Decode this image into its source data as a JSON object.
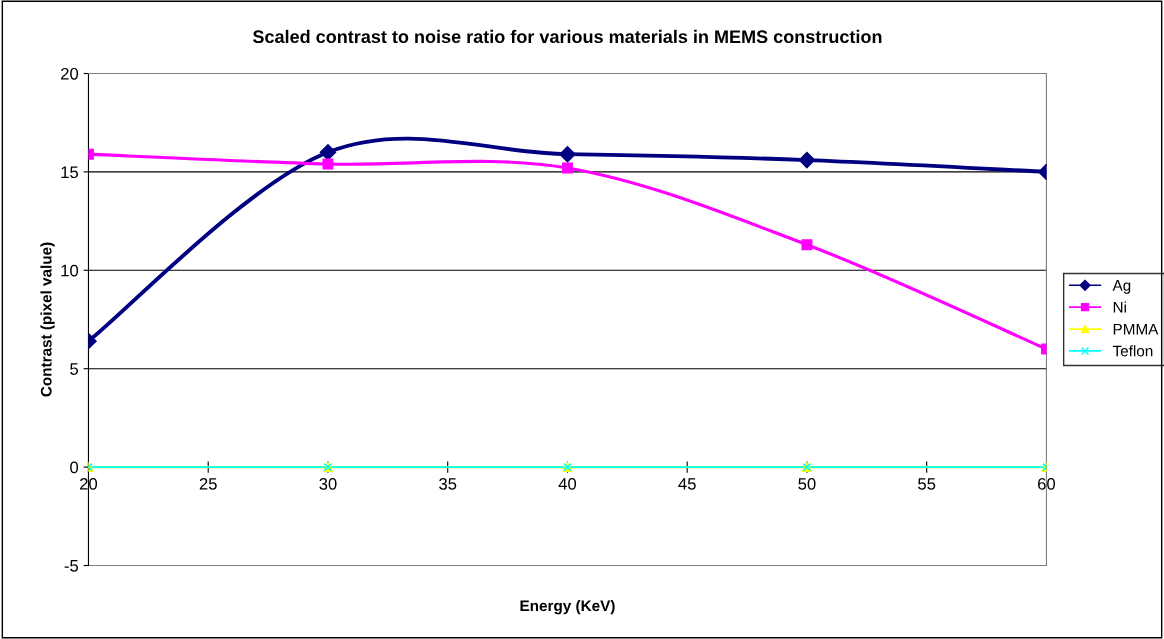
{
  "chart_data": {
    "type": "line",
    "title": "Scaled contrast to noise ratio for various materials in MEMS construction",
    "xlabel": "Energy (KeV)",
    "ylabel": "Contrast (pixel value)",
    "x": [
      20,
      30,
      40,
      50,
      60
    ],
    "series": [
      {
        "name": "Ag",
        "color": "#000080",
        "marker": "diamond",
        "values": [
          6.4,
          16.0,
          15.9,
          15.6,
          15.0
        ]
      },
      {
        "name": "Ni",
        "color": "#ff00ff",
        "marker": "square",
        "values": [
          15.9,
          15.4,
          15.2,
          11.3,
          6.0
        ]
      },
      {
        "name": "PMMA",
        "color": "#ffff00",
        "marker": "triangle",
        "values": [
          0,
          0,
          0,
          0,
          0
        ]
      },
      {
        "name": "Teflon",
        "color": "#00ffff",
        "marker": "cross",
        "values": [
          0,
          0,
          0,
          0,
          0
        ]
      }
    ],
    "xlim": [
      20,
      60
    ],
    "xticks": [
      20,
      25,
      30,
      35,
      40,
      45,
      50,
      55,
      60
    ],
    "ylim": [
      -5,
      20
    ],
    "yticks": [
      -5,
      0,
      5,
      10,
      15,
      20
    ],
    "grid": "y",
    "legend": "right",
    "line_style": "solid"
  }
}
